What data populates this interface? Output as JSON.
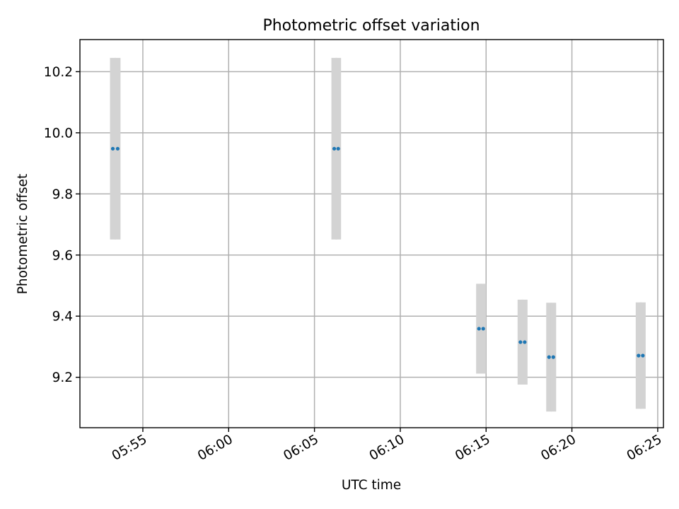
{
  "chart_data": {
    "type": "scatter",
    "title": "Photometric offset variation",
    "xlabel": "UTC time",
    "ylabel": "Photometric offset",
    "xlim": [
      "05:51:20",
      "06:25:20"
    ],
    "ylim": [
      9.035,
      10.305
    ],
    "x_ticks": [
      "05:55",
      "06:00",
      "06:05",
      "06:10",
      "06:15",
      "06:20",
      "06:25"
    ],
    "y_ticks": [
      "9.2",
      "9.4",
      "9.6",
      "9.8",
      "10.0",
      "10.2"
    ],
    "grid": true,
    "errorbar_color": "#d3d3d3",
    "marker_color": "#1f77b4",
    "points": [
      {
        "time": "05:53:15",
        "offset": 9.948,
        "error": 0.297
      },
      {
        "time": "05:53:32",
        "offset": 9.948,
        "error": 0.297
      },
      {
        "time": "06:06:09",
        "offset": 9.948,
        "error": 0.297
      },
      {
        "time": "06:06:23",
        "offset": 9.948,
        "error": 0.297
      },
      {
        "time": "06:14:35",
        "offset": 9.359,
        "error": 0.147
      },
      {
        "time": "06:14:50",
        "offset": 9.359,
        "error": 0.147
      },
      {
        "time": "06:17:00",
        "offset": 9.315,
        "error": 0.139
      },
      {
        "time": "06:17:15",
        "offset": 9.315,
        "error": 0.139
      },
      {
        "time": "06:18:40",
        "offset": 9.266,
        "error": 0.178
      },
      {
        "time": "06:18:55",
        "offset": 9.266,
        "error": 0.178
      },
      {
        "time": "06:23:53",
        "offset": 9.271,
        "error": 0.174
      },
      {
        "time": "06:24:08",
        "offset": 9.271,
        "error": 0.174
      }
    ]
  }
}
